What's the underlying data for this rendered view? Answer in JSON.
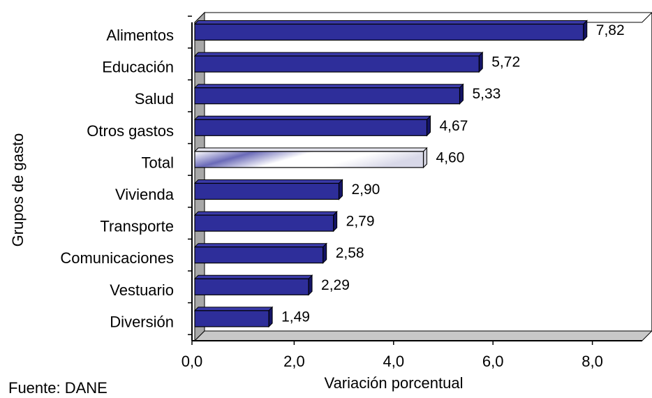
{
  "chart_data": {
    "type": "bar",
    "orientation": "horizontal",
    "categories": [
      "Alimentos",
      "Educación",
      "Salud",
      "Otros gastos",
      "Total",
      "Vivienda",
      "Transporte",
      "Comunicaciones",
      "Vestuario",
      "Diversión"
    ],
    "values": [
      7.82,
      5.72,
      5.33,
      4.67,
      4.6,
      2.9,
      2.79,
      2.58,
      2.29,
      1.49
    ],
    "value_labels": [
      "7,82",
      "5,72",
      "5,33",
      "4,67",
      "4,60",
      "2,90",
      "2,79",
      "2,58",
      "2,29",
      "1,49"
    ],
    "highlight_category": "Total",
    "xlabel": "Variación porcentual",
    "ylabel": "Grupos de gasto",
    "xlim": [
      0,
      9
    ],
    "xticks": [
      0,
      2,
      4,
      6,
      8
    ],
    "xtick_labels": [
      "0,0",
      "2,0",
      "4,0",
      "6,0",
      "8,0"
    ],
    "grid": false,
    "legend": "none",
    "colors": {
      "bar": "#2E2E9A",
      "bar_dark": "#141466",
      "highlight_light": "#ffffff",
      "highlight_dark": "#2E2E9A",
      "wall": "#a8a8a8",
      "floor": "#c8c8c8"
    }
  },
  "source_note": "Fuente: DANE"
}
